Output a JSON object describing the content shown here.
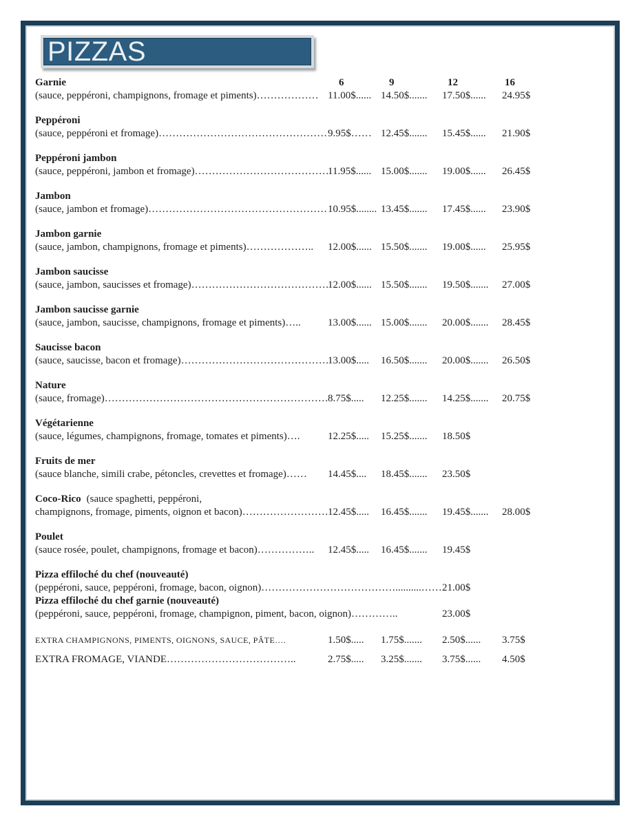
{
  "page": {
    "title": "PIZZAS"
  },
  "colors": {
    "frame_border": "#1d3e57",
    "banner_background": "#2c5d80",
    "banner_frame": "#d6dadd",
    "banner_text": "#eaeff2",
    "body_text": "#1f1f1f"
  },
  "columns": [
    "6",
    "9",
    "12",
    "16"
  ],
  "items": [
    {
      "name": "Garnie",
      "desc": "(sauce, peppéroni, champignons, fromage et piments)………………",
      "prices": [
        "11.00$......",
        "14.50$.......",
        "17.50$......",
        "24.95$"
      ]
    },
    {
      "name": "Peppéroni",
      "desc": "(sauce, peppéroni et fromage)……………………………………………",
      "prices": [
        "9.95$……",
        "12.45$.......",
        "15.45$......",
        "21.90$"
      ]
    },
    {
      "name": "Peppéroni jambon",
      "desc": "(sauce, peppéroni, jambon et fromage)……………………………………",
      "prices": [
        "11.95$......",
        "15.00$.......",
        "19.00$......",
        "26.45$"
      ]
    },
    {
      "name": "Jambon",
      "desc": "(sauce, jambon et fromage)…………………………………………………",
      "prices": [
        "10.95$........",
        "13.45$.......",
        "17.45$......",
        "23.90$"
      ]
    },
    {
      "name": "Jambon garnie",
      "desc": "(sauce, jambon, champignons, fromage et piments)………………..",
      "prices": [
        "12.00$......",
        "15.50$.......",
        "19.00$......",
        "25.95$"
      ]
    },
    {
      "name": "Jambon saucisse",
      "desc": "(sauce, jambon, saucisses et fromage)………………………………………",
      "prices": [
        "12.00$......",
        "15.50$.......",
        "19.50$.......",
        "27.00$"
      ]
    },
    {
      "name": "Jambon saucisse garnie",
      "desc": "(sauce, jambon, saucisse, champignons, fromage et piments)…..",
      "prices": [
        "13.00$......",
        "15.00$.......",
        "20.00$.......",
        "28.45$"
      ]
    },
    {
      "name": "Saucisse bacon",
      "desc": "(sauce, saucisse, bacon et fromage)…………………………………………",
      "prices": [
        "13.00$.....",
        "16.50$.......",
        "20.00$.......",
        "26.50$"
      ]
    },
    {
      "name": "Nature",
      "desc": "(sauce, fromage)………………………………………………………………………",
      "prices": [
        "8.75$.....",
        "12.25$.......",
        "14.25$.......",
        "20.75$"
      ]
    },
    {
      "name": "Végétarienne",
      "desc": "(sauce, légumes, champignons, fromage, tomates et piments)….",
      "prices": [
        "12.25$.....",
        "15.25$.......",
        "18.50$",
        ""
      ]
    },
    {
      "name": "Fruits de mer",
      "desc": "(sauce blanche, simili crabe, pétoncles, crevettes et fromage)……",
      "prices": [
        "14.45$....",
        "18.45$.......",
        "23.50$",
        ""
      ]
    },
    {
      "name": "Coco-Rico",
      "title_suffix": "(sauce spaghetti, peppéroni,",
      "desc": "champignons, fromage, piments, oignon et bacon)…………………………",
      "prices": [
        "12.45$.....",
        "16.45$.......",
        "19.45$.......",
        "28.00$"
      ]
    },
    {
      "name": "Poulet",
      "desc": "(sauce rosée, poulet, champignons, fromage et bacon)……………..",
      "prices": [
        "12.45$.....",
        "16.45$.......",
        "19.45$",
        ""
      ]
    }
  ],
  "specials": [
    {
      "name": "Pizza effiloché du chef (nouveauté)",
      "desc": "(peppéroni, sauce, peppéroni, fromage, bacon, oignon)…………………………………..........……….",
      "price": "21.00$"
    },
    {
      "name": "Pizza effiloché du chef garnie (nouveauté)",
      "desc": "(peppéroni, sauce, peppéroni, fromage, champignon, piment, bacon, oignon)…………..",
      "price": "23.00$"
    }
  ],
  "extras": [
    {
      "label": "EXTRA CHAMPIGNONS, PIMENTS, OIGNONS, SAUCE, PÂTE….",
      "prices": [
        "1.50$.....",
        "1.75$.......",
        "2.50$......",
        "3.75$"
      ]
    },
    {
      "label": "EXTRA FROMAGE, VIANDE………………………………..",
      "prices": [
        "2.75$.....",
        "3.25$.......",
        "3.75$......",
        "4.50$"
      ]
    }
  ]
}
